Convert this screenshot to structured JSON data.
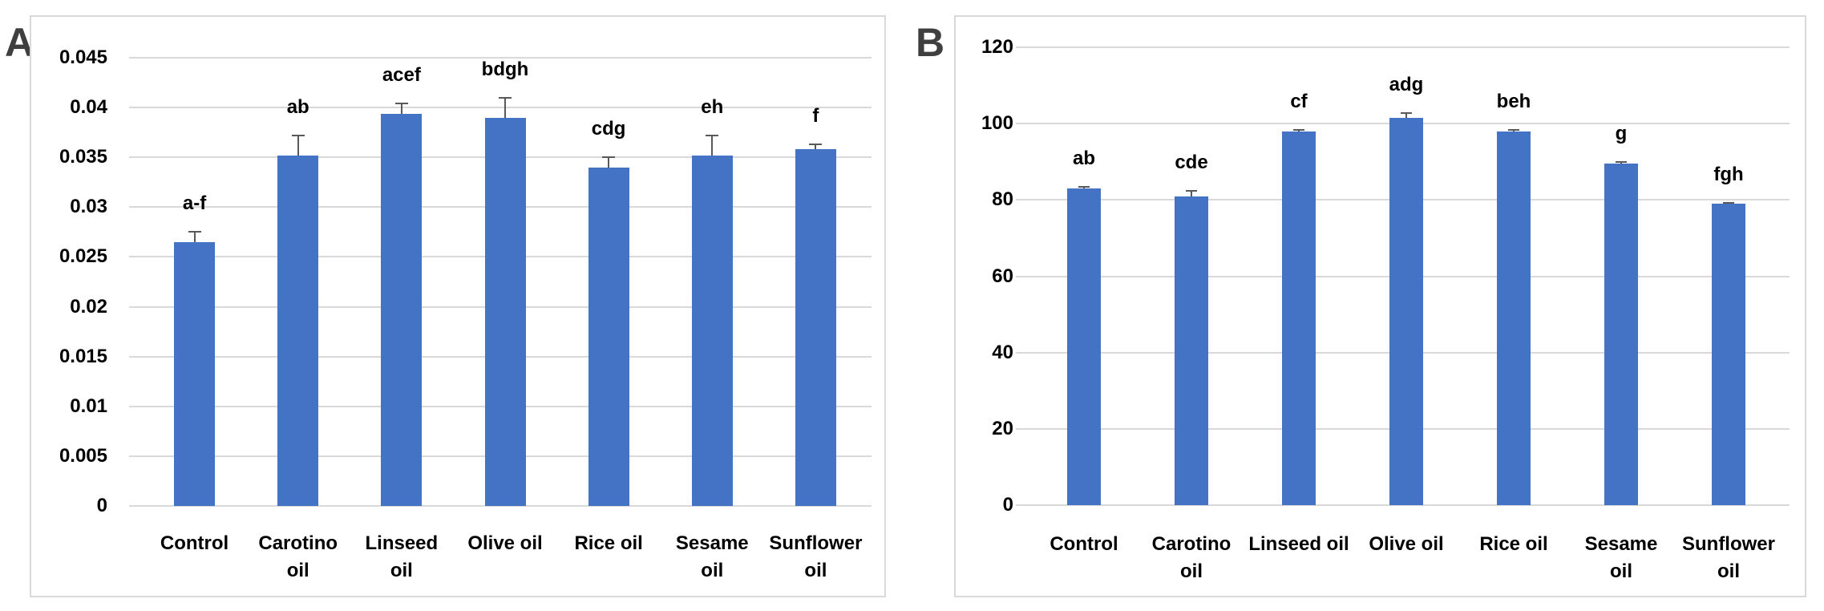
{
  "figure": {
    "background": "#ffffff",
    "gridline_color": "#d9d9d9",
    "error_bar_color": "#595959",
    "panel_border_color": "#d9d9d9",
    "panel_label_color": "#3f3f3f"
  },
  "chart_data": [
    {
      "type": "bar",
      "panel_label": "A",
      "title": "",
      "xlabel": "",
      "ylabel": "",
      "bar_color": "#4472c4",
      "grid": true,
      "legend": false,
      "ylim": [
        0,
        0.045
      ],
      "ytick_labels": [
        "0",
        "0.005",
        "0.01",
        "0.015",
        "0.02",
        "0.025",
        "0.03",
        "0.035",
        "0.04",
        "0.045"
      ],
      "categories": [
        "Control",
        "Carotino oil",
        "Linseed oil",
        "Olive oil",
        "Rice oil",
        "Sesame oil",
        "Sunflower oil"
      ],
      "category_lines": [
        [
          "Control"
        ],
        [
          "Carotino",
          "oil"
        ],
        [
          "Linseed",
          "oil"
        ],
        [
          "Olive oil"
        ],
        [
          "Rice oil"
        ],
        [
          "Sesame",
          "oil"
        ],
        [
          "Sunflower",
          "oil"
        ]
      ],
      "values": [
        0.0265,
        0.0352,
        0.0394,
        0.039,
        0.034,
        0.0352,
        0.0358
      ],
      "errors": [
        0.001,
        0.002,
        0.001,
        0.002,
        0.001,
        0.002,
        0.0005
      ],
      "sig_letters": [
        "a-f",
        "ab",
        "acef",
        "bdgh",
        "cdg",
        "eh",
        "f"
      ]
    },
    {
      "type": "bar",
      "panel_label": "B",
      "title": "",
      "xlabel": "",
      "ylabel": "",
      "bar_color": "#4472c4",
      "grid": true,
      "legend": false,
      "ylim": [
        0,
        120
      ],
      "ytick_labels": [
        "0",
        "20",
        "40",
        "60",
        "80",
        "100",
        "120"
      ],
      "categories": [
        "Control",
        "Carotino oil",
        "Linseed oil",
        "Olive oil",
        "Rice oil",
        "Sesame oil",
        "Sunflower oil"
      ],
      "category_lines": [
        [
          "Control"
        ],
        [
          "Carotino",
          "oil"
        ],
        [
          "Linseed oil"
        ],
        [
          "Olive oil"
        ],
        [
          "Rice oil"
        ],
        [
          "Sesame",
          "oil"
        ],
        [
          "Sunflower",
          "oil"
        ]
      ],
      "values": [
        83,
        81,
        98,
        101.5,
        98,
        89.5,
        79
      ],
      "errors": [
        0.5,
        1.4,
        0.4,
        1.2,
        0.4,
        0.4,
        0.3
      ],
      "sig_letters": [
        "ab",
        "cde",
        "cf",
        "adg",
        "beh",
        "g",
        "fgh"
      ]
    }
  ]
}
